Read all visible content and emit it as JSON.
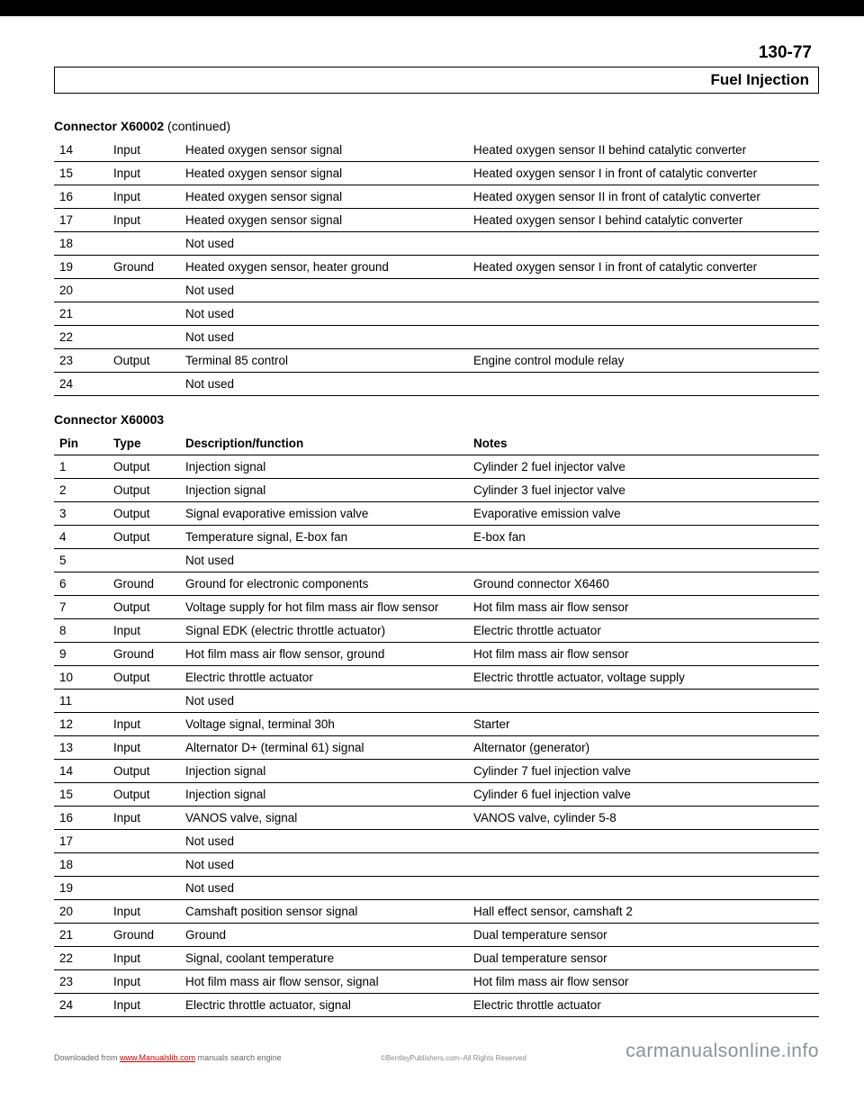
{
  "page_number": "130-77",
  "section_title": "Fuel Injection",
  "table1": {
    "title_bold": "Connector X60002",
    "title_normal": " (continued)",
    "rows": [
      {
        "pin": "14",
        "type": "Input",
        "desc": "Heated oxygen sensor signal",
        "notes": "Heated oxygen sensor II behind catalytic converter"
      },
      {
        "pin": "15",
        "type": "Input",
        "desc": "Heated oxygen sensor signal",
        "notes": "Heated oxygen sensor I in front of catalytic converter"
      },
      {
        "pin": "16",
        "type": "Input",
        "desc": "Heated oxygen sensor signal",
        "notes": "Heated oxygen sensor II in front of catalytic converter"
      },
      {
        "pin": "17",
        "type": "Input",
        "desc": "Heated oxygen sensor signal",
        "notes": "Heated oxygen sensor I behind catalytic converter"
      },
      {
        "pin": "18",
        "type": "",
        "desc": "Not used",
        "notes": ""
      },
      {
        "pin": "19",
        "type": "Ground",
        "desc": "Heated oxygen sensor, heater ground",
        "notes": "Heated oxygen sensor I in front of catalytic converter"
      },
      {
        "pin": "20",
        "type": "",
        "desc": "Not used",
        "notes": ""
      },
      {
        "pin": "21",
        "type": "",
        "desc": "Not used",
        "notes": ""
      },
      {
        "pin": "22",
        "type": "",
        "desc": "Not used",
        "notes": ""
      },
      {
        "pin": "23",
        "type": "Output",
        "desc": "Terminal 85 control",
        "notes": "Engine control module relay"
      },
      {
        "pin": "24",
        "type": "",
        "desc": "Not used",
        "notes": ""
      }
    ]
  },
  "table2": {
    "title_bold": "Connector X60003",
    "title_normal": "",
    "headers": {
      "pin": "Pin",
      "type": "Type",
      "desc": "Description/function",
      "notes": "Notes"
    },
    "rows": [
      {
        "pin": "1",
        "type": "Output",
        "desc": "Injection signal",
        "notes": "Cylinder 2 fuel injector valve"
      },
      {
        "pin": "2",
        "type": "Output",
        "desc": "Injection signal",
        "notes": "Cylinder 3 fuel injector valve"
      },
      {
        "pin": "3",
        "type": "Output",
        "desc": "Signal evaporative emission valve",
        "notes": "Evaporative emission valve"
      },
      {
        "pin": "4",
        "type": "Output",
        "desc": "Temperature signal, E-box fan",
        "notes": "E-box fan"
      },
      {
        "pin": "5",
        "type": "",
        "desc": "Not used",
        "notes": ""
      },
      {
        "pin": "6",
        "type": "Ground",
        "desc": "Ground for electronic components",
        "notes": "Ground connector X6460"
      },
      {
        "pin": "7",
        "type": "Output",
        "desc": "Voltage supply for hot film mass air flow sensor",
        "notes": "Hot film mass air flow sensor"
      },
      {
        "pin": "8",
        "type": "Input",
        "desc": "Signal EDK (electric throttle actuator)",
        "notes": "Electric throttle actuator"
      },
      {
        "pin": "9",
        "type": "Ground",
        "desc": "Hot film mass air flow sensor, ground",
        "notes": "Hot film mass air flow sensor"
      },
      {
        "pin": "10",
        "type": "Output",
        "desc": "Electric throttle actuator",
        "notes": "Electric throttle actuator, voltage supply"
      },
      {
        "pin": "11",
        "type": "",
        "desc": "Not used",
        "notes": ""
      },
      {
        "pin": "12",
        "type": "Input",
        "desc": "Voltage signal, terminal 30h",
        "notes": "Starter"
      },
      {
        "pin": "13",
        "type": "Input",
        "desc": "Alternator D+ (terminal 61) signal",
        "notes": "Alternator (generator)"
      },
      {
        "pin": "14",
        "type": "Output",
        "desc": "Injection signal",
        "notes": "Cylinder 7 fuel injection valve"
      },
      {
        "pin": "15",
        "type": "Output",
        "desc": "Injection signal",
        "notes": "Cylinder 6 fuel injection valve"
      },
      {
        "pin": "16",
        "type": "Input",
        "desc": "VANOS valve, signal",
        "notes": "VANOS valve, cylinder 5-8"
      },
      {
        "pin": "17",
        "type": "",
        "desc": "Not used",
        "notes": ""
      },
      {
        "pin": "18",
        "type": "",
        "desc": "Not used",
        "notes": ""
      },
      {
        "pin": "19",
        "type": "",
        "desc": "Not used",
        "notes": ""
      },
      {
        "pin": "20",
        "type": "Input",
        "desc": "Camshaft position sensor signal",
        "notes": "Hall effect sensor, camshaft 2"
      },
      {
        "pin": "21",
        "type": "Ground",
        "desc": "Ground",
        "notes": "Dual temperature sensor"
      },
      {
        "pin": "22",
        "type": "Input",
        "desc": "Signal, coolant temperature",
        "notes": "Dual temperature sensor"
      },
      {
        "pin": "23",
        "type": "Input",
        "desc": "Hot film mass air flow sensor, signal",
        "notes": "Hot film mass air flow sensor"
      },
      {
        "pin": "24",
        "type": "Input",
        "desc": "Electric throttle actuator, signal",
        "notes": "Electric throttle actuator"
      }
    ]
  },
  "footer": {
    "left_prefix": "Downloaded from ",
    "left_link": "www.Manualslib.com",
    "left_suffix": " manuals search engine",
    "center": "©BentleyPublishers.com–All Rights Reserved",
    "right": "carmanualsonline.info"
  }
}
